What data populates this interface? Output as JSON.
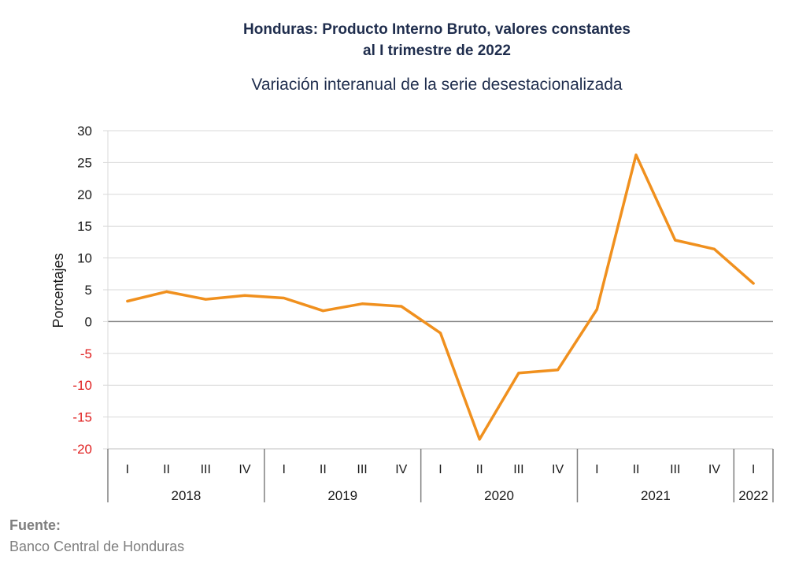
{
  "chart_data": {
    "type": "line",
    "title_line1": "Honduras: Producto Interno Bruto, valores constantes",
    "title_line2": "al I trimestre de 2022",
    "subtitle": "Variación interanual de la serie desestacionalizada",
    "ylabel": "Porcentajes",
    "xlabel": "",
    "ylim": [
      -20,
      30
    ],
    "yticks": [
      30,
      25,
      20,
      15,
      10,
      5,
      0,
      -5,
      -10,
      -15,
      -20
    ],
    "grid": true,
    "legend": "none",
    "categories": [
      "I",
      "II",
      "III",
      "IV",
      "I",
      "II",
      "III",
      "IV",
      "I",
      "II",
      "III",
      "IV",
      "I",
      "II",
      "III",
      "IV",
      "I"
    ],
    "years": [
      {
        "label": "2018",
        "count": 4
      },
      {
        "label": "2019",
        "count": 4
      },
      {
        "label": "2020",
        "count": 4
      },
      {
        "label": "2021",
        "count": 4
      },
      {
        "label": "2022",
        "count": 1
      }
    ],
    "series": [
      {
        "values": [
          3.2,
          4.7,
          3.5,
          4.1,
          3.7,
          1.7,
          2.8,
          2.4,
          -1.8,
          -18.5,
          -8.1,
          -7.6,
          1.9,
          26.2,
          12.8,
          11.4,
          6.0
        ]
      }
    ],
    "colors": {
      "line": "#F0901E",
      "negative_tick": "#e02020",
      "positive_tick": "#1a1a1a",
      "grid": "#d9d9d9",
      "zero_line": "#808080"
    }
  },
  "source": {
    "label": "Fuente:",
    "text": "Banco Central de Honduras"
  }
}
